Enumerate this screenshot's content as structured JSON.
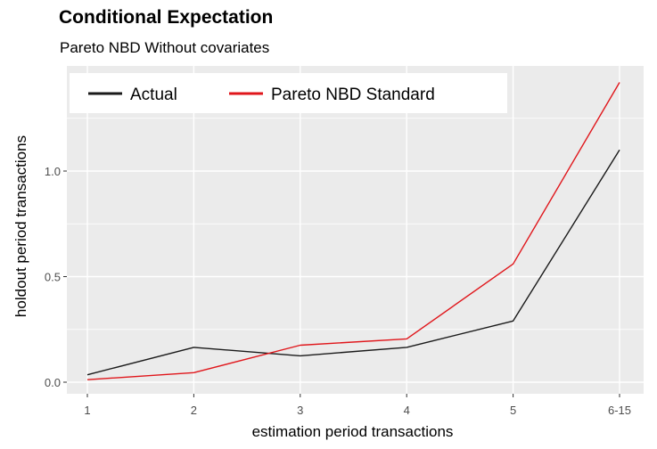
{
  "chart_data": {
    "type": "line",
    "title": "Conditional Expectation",
    "subtitle": "Pareto NBD Without covariates",
    "xlabel": "estimation period transactions",
    "ylabel": "holdout period transactions",
    "categories": [
      "1",
      "2",
      "3",
      "4",
      "5",
      "6-15"
    ],
    "ylim": [
      -0.04,
      1.46
    ],
    "yticks": [
      0.0,
      0.5,
      1.0
    ],
    "ytick_labels": [
      "0.0",
      "0.5",
      "1.0"
    ],
    "grid": true,
    "legend_position": "top-left",
    "background": "#ebebeb",
    "grid_color": "#ffffff",
    "series": [
      {
        "name": "Actual",
        "color": "#1a1a1a",
        "values": [
          0.035,
          0.165,
          0.125,
          0.165,
          0.29,
          1.1
        ]
      },
      {
        "name": "Pareto NBD Standard",
        "color": "#e0161b",
        "values": [
          0.012,
          0.045,
          0.175,
          0.205,
          0.56,
          1.42
        ]
      }
    ]
  }
}
